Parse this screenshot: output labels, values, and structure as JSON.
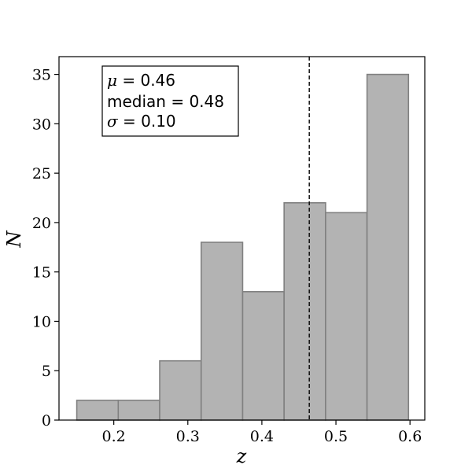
{
  "chart_data": {
    "type": "bar",
    "subtype": "histogram",
    "bins": [
      {
        "left": 0.15,
        "right": 0.206,
        "count": 2
      },
      {
        "left": 0.206,
        "right": 0.262,
        "count": 2
      },
      {
        "left": 0.262,
        "right": 0.318,
        "count": 6
      },
      {
        "left": 0.318,
        "right": 0.374,
        "count": 18
      },
      {
        "left": 0.374,
        "right": 0.43,
        "count": 13
      },
      {
        "left": 0.43,
        "right": 0.486,
        "count": 22
      },
      {
        "left": 0.486,
        "right": 0.542,
        "count": 21
      },
      {
        "left": 0.542,
        "right": 0.598,
        "count": 35
      }
    ],
    "xlabel": "z",
    "ylabel": "N",
    "xlim": [
      0.126,
      0.62
    ],
    "ylim": [
      0,
      36.8
    ],
    "xticks": [
      0.2,
      0.3,
      0.4,
      0.5,
      0.6
    ],
    "xtick_labels": [
      "0.2",
      "0.3",
      "0.4",
      "0.5",
      "0.6"
    ],
    "yticks": [
      0,
      5,
      10,
      15,
      20,
      25,
      30,
      35
    ],
    "ytick_labels": [
      "0",
      "5",
      "10",
      "15",
      "20",
      "25",
      "30",
      "35"
    ],
    "mean_line_x": 0.464,
    "grid": false,
    "colors": {
      "bar_fill": "#b3b3b3",
      "bar_edge": "#808080",
      "mean_line": "#000000"
    }
  },
  "stats_box": {
    "mu_symbol": "μ",
    "mu_value": " = 0.46",
    "median_line": "median = 0.48",
    "sigma_symbol": "σ",
    "sigma_value": " = 0.10"
  }
}
